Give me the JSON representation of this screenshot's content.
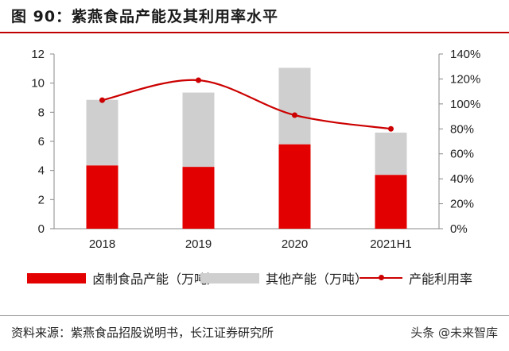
{
  "title": "图 90：紫燕食品产能及其利用率水平",
  "source": "资料来源：紫燕食品招股说明书，长江证券研究所",
  "watermark": "头条 @未来智库",
  "colors": {
    "red": "#e30000",
    "gray": "#cfcfcf",
    "line": "#cc0000"
  },
  "chart_data": {
    "type": "bar",
    "categories": [
      "2018",
      "2019",
      "2020",
      "2021H1"
    ],
    "series": [
      {
        "name": "卤制食品产能（万吨）",
        "kind": "stacked-bar",
        "axis": "left",
        "values": [
          4.35,
          4.25,
          5.8,
          3.7
        ]
      },
      {
        "name": "其他产能（万吨）",
        "kind": "stacked-bar",
        "axis": "left",
        "values": [
          4.5,
          5.1,
          5.25,
          2.9
        ]
      },
      {
        "name": "产能利用率",
        "kind": "line",
        "axis": "right",
        "values": [
          103,
          119,
          91,
          80
        ]
      }
    ],
    "y_left": {
      "min": 0,
      "max": 12,
      "ticks": [
        0,
        2,
        4,
        6,
        8,
        10,
        12
      ]
    },
    "y_right": {
      "min": 0,
      "max": 140,
      "ticks": [
        "0%",
        "20%",
        "40%",
        "60%",
        "80%",
        "100%",
        "120%",
        "140%"
      ]
    },
    "legend_position": "bottom",
    "grid": false
  }
}
